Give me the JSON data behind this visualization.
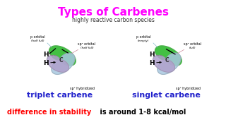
{
  "title": "Types of Carbenes",
  "subtitle": "highly reactive carbon species",
  "title_color": "#ff00ff",
  "subtitle_color": "#333333",
  "left_label": "triplet carbene",
  "right_label": "singlet carbene",
  "label_color": "#2222cc",
  "bottom_text_red": "difference in stability",
  "bottom_text_black": " is around 1-8 kcal/mol",
  "bg_color": "#ffffff",
  "p_orbital_color": "#a8c8e0",
  "sp2_right_color": "#b0a0cc",
  "sp3_bottom_color": "#33bb33"
}
